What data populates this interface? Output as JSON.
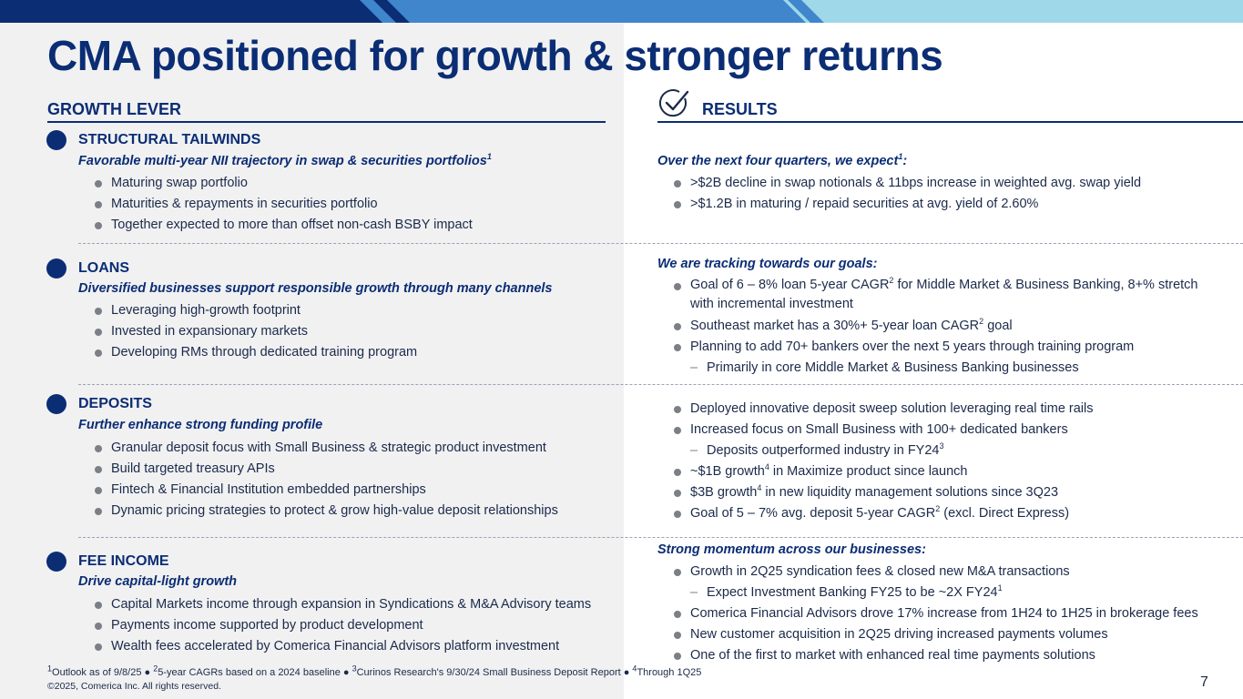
{
  "title": "CMA positioned for growth & stronger returns",
  "headers": {
    "left": "GROWTH LEVER",
    "right": "RESULTS"
  },
  "icons": {
    "results": "checkmark-circle-icon",
    "bullet": "bullet-dot-icon",
    "section": "section-dot-icon"
  },
  "colors": {
    "navy": "#0b2d74",
    "mid_blue": "#3f86cc",
    "light_blue": "#9fd8e8",
    "left_bg": "#f1f1f2"
  },
  "sections": [
    {
      "title": "STRUCTURAL TAILWINDS",
      "subtitle": "Favorable multi-year NII trajectory in swap & securities portfolios",
      "subtitle_sup": "1",
      "bullets": [
        "Maturing swap portfolio",
        "Maturities & repayments in securities portfolio",
        "Together expected to more than offset non-cash BSBY impact"
      ]
    },
    {
      "title": "LOANS",
      "subtitle": "Diversified businesses support responsible growth through many channels",
      "bullets": [
        "Leveraging high-growth footprint",
        "Invested in expansionary markets",
        "Developing RMs through dedicated training program"
      ]
    },
    {
      "title": "DEPOSITS",
      "subtitle": "Further enhance strong funding profile",
      "bullets": [
        "Granular deposit focus with Small Business & strategic product investment",
        "Build targeted treasury APIs",
        "Fintech & Financial Institution embedded partnerships",
        "Dynamic pricing strategies to protect & grow high-value deposit relationships"
      ]
    },
    {
      "title": "FEE INCOME",
      "subtitle": "Drive capital-light growth",
      "bullets": [
        "Capital Markets income through expansion in Syndications & M&A Advisory teams",
        "Payments income supported by product development",
        "Wealth fees accelerated by Comerica Financial Advisors platform investment"
      ]
    }
  ],
  "results": {
    "r1": {
      "intro": "Over the next four quarters, we expect",
      "intro_sup": "1",
      "intro_end": ":",
      "b1": ">$2B decline in swap notionals & 11bps increase in weighted avg. swap yield",
      "b2": ">$1.2B in maturing / repaid securities at avg. yield of 2.60%"
    },
    "r2": {
      "intro": "We are tracking towards our goals:",
      "b1a": "Goal of 6 – 8% loan 5-year CAGR",
      "b1sup": "2",
      "b1b": " for Middle Market & Business Banking, 8+% stretch with incremental investment",
      "b2a": "Southeast market has a 30%+ 5-year loan CAGR",
      "b2sup": "2",
      "b2b": " goal",
      "b3": "Planning to add 70+ bankers over the next 5 years through training program",
      "d1": "Primarily in core Middle Market & Business Banking businesses"
    },
    "r3": {
      "b1": "Deployed innovative deposit sweep solution leveraging real time rails",
      "b2": "Increased focus on Small Business with 100+ dedicated bankers",
      "d1": "Deposits outperformed industry in FY24",
      "d1sup": "3",
      "b3a": "~$1B growth",
      "b3sup": "4",
      "b3b": " in Maximize product since launch",
      "b4a": "$3B growth",
      "b4sup": "4",
      "b4b": " in new liquidity management solutions since 3Q23",
      "b5a": "Goal of 5 – 7% avg. deposit 5-year CAGR",
      "b5sup": "2",
      "b5b": " (excl. Direct Express)"
    },
    "r4": {
      "intro": "Strong momentum across our businesses:",
      "b1": "Growth in 2Q25 syndication fees & closed new M&A transactions",
      "d1": "Expect Investment Banking FY25 to be ~2X FY24",
      "d1sup": "1",
      "b2": "Comerica Financial Advisors drove 17% increase from 1H24 to 1H25 in brokerage fees",
      "b3": "New customer acquisition in 2Q25 driving increased payments volumes",
      "b4": "One of the first to market with enhanced real time payments solutions"
    }
  },
  "footnote": {
    "s1": "1",
    "t1": "Outlook as of 9/8/25 ● ",
    "s2": "2",
    "t2": "5-year CAGRs based on a 2024 baseline ● ",
    "s3": "3",
    "t3": "Curinos Research's 9/30/24 Small Business Deposit Report ● ",
    "s4": "4",
    "t4": "Through 1Q25"
  },
  "copyright": "©2025, Comerica Inc. All rights reserved.",
  "page_number": "7"
}
